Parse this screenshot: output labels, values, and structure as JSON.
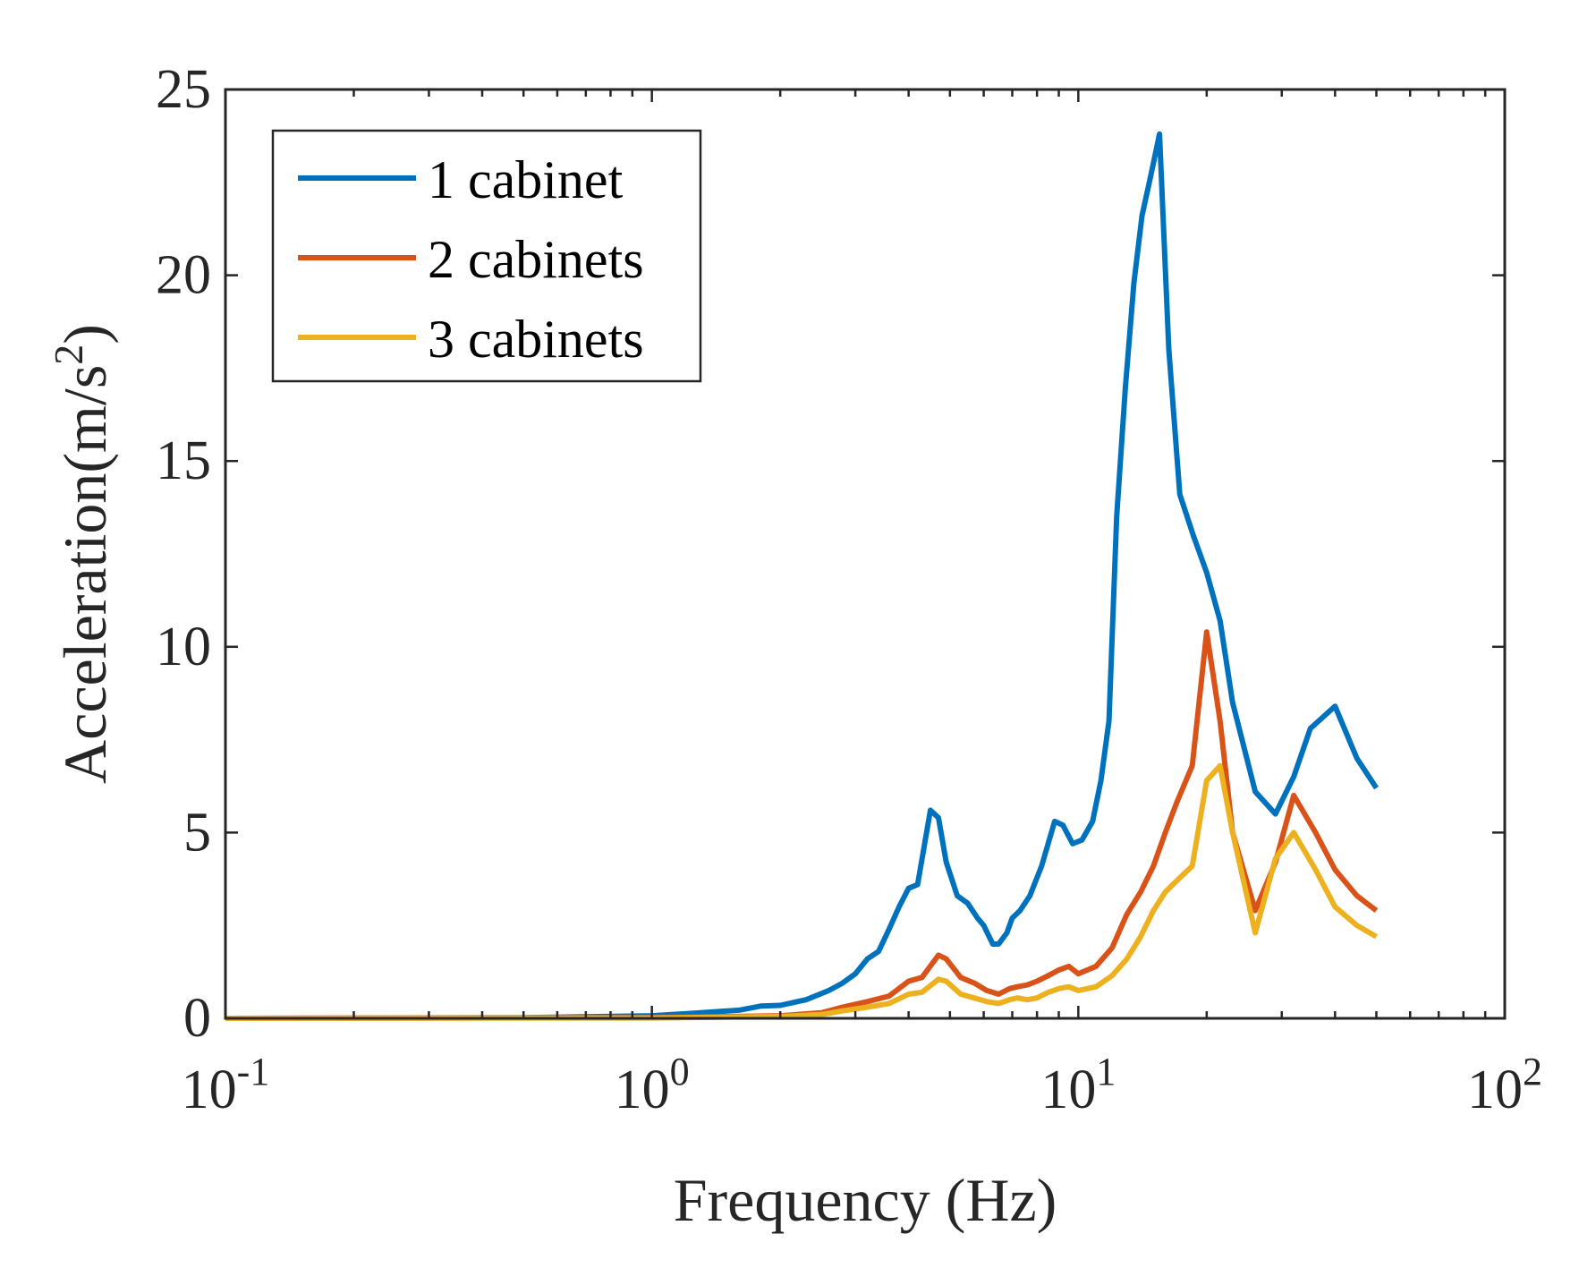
{
  "chart_data": {
    "type": "line",
    "xscale": "log",
    "xlim": [
      0.1,
      100
    ],
    "ylim": [
      0,
      25
    ],
    "xlabel": "Frequency (Hz)",
    "ylabel": "Acceleration(m/s",
    "ylabel_superscript": "2",
    "ylabel_suffix": ")",
    "yticks": [
      "0",
      "5",
      "10",
      "15",
      "20",
      "25"
    ],
    "xticks": [
      {
        "base": "10",
        "exp": "-1"
      },
      {
        "base": "10",
        "exp": "0"
      },
      {
        "base": "10",
        "exp": "1"
      },
      {
        "base": "10",
        "exp": "2"
      }
    ],
    "legend_location": "top-left",
    "series": [
      {
        "name": "1 cabinet",
        "color": "#0072BD",
        "x": [
          0.1,
          0.5,
          1.0,
          1.3,
          1.6,
          1.8,
          2.0,
          2.3,
          2.6,
          2.8,
          3.0,
          3.2,
          3.4,
          3.6,
          3.8,
          4.0,
          4.2,
          4.5,
          4.7,
          4.9,
          5.2,
          5.5,
          5.8,
          6.0,
          6.3,
          6.5,
          6.8,
          7.0,
          7.3,
          7.7,
          8.2,
          8.8,
          9.2,
          9.7,
          10.2,
          10.8,
          11.3,
          11.8,
          12.3,
          12.9,
          13.5,
          14.1,
          14.8,
          15.5,
          16.3,
          17.3,
          18.6,
          20.0,
          21.5,
          23.0,
          26.0,
          29.0,
          32.0,
          35.0,
          40.0,
          45.0,
          50.0
        ],
        "values": [
          0.0,
          0.02,
          0.07,
          0.15,
          0.22,
          0.33,
          0.35,
          0.5,
          0.75,
          0.95,
          1.2,
          1.6,
          1.8,
          2.4,
          3.0,
          3.5,
          3.6,
          5.6,
          5.4,
          4.2,
          3.3,
          3.1,
          2.7,
          2.5,
          2.0,
          2.0,
          2.3,
          2.7,
          2.9,
          3.3,
          4.1,
          5.3,
          5.2,
          4.7,
          4.8,
          5.3,
          6.4,
          8.0,
          13.5,
          17.0,
          19.8,
          21.6,
          22.7,
          23.8,
          18.0,
          14.1,
          13.0,
          12.0,
          10.7,
          8.5,
          6.1,
          5.5,
          6.5,
          7.8,
          8.4,
          7.0,
          6.2
        ]
      },
      {
        "name": "2 cabinets",
        "color": "#D95319",
        "x": [
          0.1,
          1.0,
          2.0,
          2.5,
          2.8,
          3.2,
          3.6,
          4.0,
          4.3,
          4.7,
          4.9,
          5.3,
          5.7,
          6.1,
          6.5,
          6.9,
          7.2,
          7.6,
          8.0,
          8.5,
          9.0,
          9.5,
          10.0,
          10.5,
          11.0,
          12.0,
          13.0,
          14.0,
          15.0,
          16.0,
          17.0,
          18.5,
          20.0,
          21.5,
          23.0,
          26.0,
          29.0,
          32.0,
          36.0,
          40.0,
          45.0,
          50.0
        ],
        "values": [
          0.0,
          0.02,
          0.07,
          0.15,
          0.3,
          0.45,
          0.6,
          1.0,
          1.1,
          1.7,
          1.6,
          1.1,
          0.95,
          0.75,
          0.65,
          0.8,
          0.85,
          0.9,
          1.0,
          1.15,
          1.3,
          1.4,
          1.2,
          1.3,
          1.4,
          1.9,
          2.8,
          3.4,
          4.1,
          5.0,
          5.8,
          6.8,
          10.4,
          8.0,
          5.0,
          2.9,
          4.2,
          6.0,
          5.0,
          4.0,
          3.3,
          2.9
        ]
      },
      {
        "name": "3 cabinets",
        "color": "#EDB120",
        "x": [
          0.1,
          1.0,
          2.0,
          2.5,
          2.8,
          3.2,
          3.6,
          4.0,
          4.3,
          4.7,
          4.9,
          5.3,
          5.7,
          6.1,
          6.5,
          6.9,
          7.2,
          7.6,
          8.0,
          8.5,
          9.0,
          9.5,
          10.0,
          10.5,
          11.0,
          12.0,
          13.0,
          14.0,
          15.0,
          16.0,
          17.0,
          18.5,
          20.0,
          21.5,
          23.0,
          26.0,
          29.0,
          32.0,
          36.0,
          40.0,
          45.0,
          50.0
        ],
        "values": [
          0.0,
          0.01,
          0.05,
          0.1,
          0.2,
          0.3,
          0.4,
          0.65,
          0.7,
          1.05,
          1.0,
          0.65,
          0.55,
          0.45,
          0.4,
          0.5,
          0.55,
          0.5,
          0.55,
          0.7,
          0.8,
          0.85,
          0.75,
          0.8,
          0.85,
          1.15,
          1.6,
          2.2,
          2.9,
          3.4,
          3.7,
          4.1,
          6.4,
          6.8,
          5.0,
          2.3,
          4.3,
          5.0,
          4.0,
          3.0,
          2.5,
          2.2
        ]
      }
    ]
  }
}
